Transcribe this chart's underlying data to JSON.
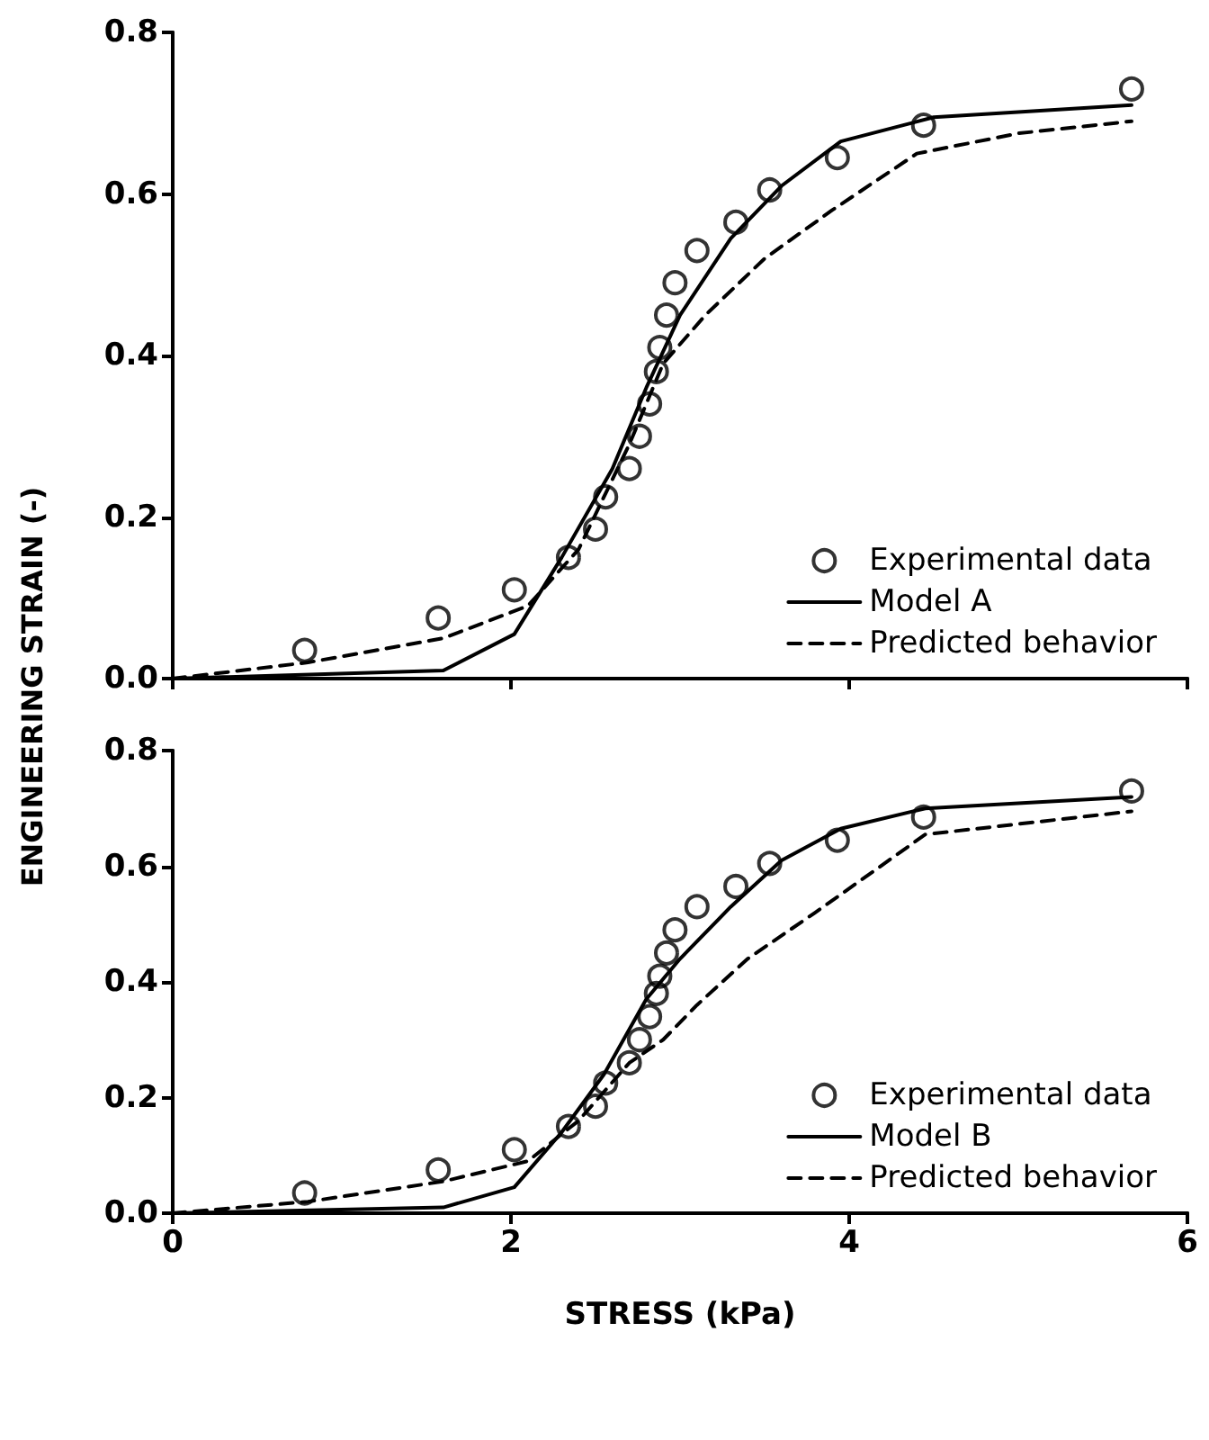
{
  "chart_data": [
    {
      "type": "scatter",
      "ylabel": "ENGINEERING STRAIN (-)",
      "xlim": [
        0,
        6
      ],
      "xticks": [
        0,
        2,
        4,
        6
      ],
      "ylim": [
        0,
        0.8
      ],
      "yticks": [
        {
          "value": 0,
          "label": "0.0"
        },
        0.2,
        0.4,
        0.6,
        0.8
      ],
      "tick_labels": "y",
      "grid": false,
      "legend": "bottom right",
      "series": [
        {
          "name": "Experimental data",
          "type": "scatter",
          "marker": "circle",
          "color": "#000000",
          "x": [
            0.78,
            1.57,
            2.02,
            2.34,
            2.5,
            2.56,
            2.7,
            2.76,
            2.82,
            2.86,
            2.88,
            2.92,
            2.97,
            3.1,
            3.33,
            3.53,
            3.93,
            4.44,
            5.67
          ],
          "values": [
            0.035,
            0.075,
            0.11,
            0.15,
            0.185,
            0.225,
            0.26,
            0.3,
            0.34,
            0.38,
            0.41,
            0.45,
            0.49,
            0.53,
            0.565,
            0.605,
            0.645,
            0.685,
            0.73
          ]
        },
        {
          "name": "Model A",
          "type": "line",
          "line_style": "solid",
          "color": "#000000",
          "x": [
            0,
            1.6,
            2.02,
            2.3,
            2.6,
            2.8,
            3.0,
            3.3,
            3.6,
            3.95,
            4.5,
            5.67
          ],
          "values": [
            0,
            0.01,
            0.055,
            0.15,
            0.26,
            0.36,
            0.45,
            0.545,
            0.61,
            0.665,
            0.695,
            0.71
          ]
        },
        {
          "name": "Predicted behavior",
          "type": "line",
          "line_style": "dashed",
          "color": "#000000",
          "x": [
            0,
            0.8,
            1.6,
            2.1,
            2.4,
            2.7,
            2.9,
            3.15,
            3.5,
            3.9,
            4.4,
            5.0,
            5.67
          ],
          "values": [
            0,
            0.02,
            0.05,
            0.09,
            0.16,
            0.29,
            0.39,
            0.45,
            0.52,
            0.58,
            0.65,
            0.675,
            0.69
          ]
        }
      ]
    },
    {
      "type": "scatter",
      "xlabel": "STRESS (kPa)",
      "xlim": [
        0,
        6
      ],
      "xticks": [
        0,
        2,
        4,
        6
      ],
      "ylim": [
        0,
        0.8
      ],
      "yticks": [
        {
          "value": 0,
          "label": "0.0"
        },
        0.2,
        0.4,
        0.6,
        0.8
      ],
      "grid": false,
      "legend": "bottom right",
      "series": [
        {
          "name": "Experimental data",
          "type": "scatter",
          "marker": "circle",
          "color": "#000000",
          "x": [
            0.78,
            1.57,
            2.02,
            2.34,
            2.5,
            2.56,
            2.7,
            2.76,
            2.82,
            2.86,
            2.88,
            2.92,
            2.97,
            3.1,
            3.33,
            3.53,
            3.93,
            4.44,
            5.67
          ],
          "values": [
            0.035,
            0.075,
            0.11,
            0.15,
            0.185,
            0.225,
            0.26,
            0.3,
            0.34,
            0.38,
            0.41,
            0.45,
            0.49,
            0.53,
            0.565,
            0.605,
            0.645,
            0.685,
            0.73
          ]
        },
        {
          "name": "Model B",
          "type": "line",
          "line_style": "solid",
          "color": "#000000",
          "x": [
            0,
            1.6,
            2.02,
            2.3,
            2.55,
            2.8,
            3.0,
            3.3,
            3.6,
            3.95,
            4.45,
            5.67
          ],
          "values": [
            0,
            0.01,
            0.045,
            0.14,
            0.24,
            0.37,
            0.44,
            0.53,
            0.61,
            0.665,
            0.7,
            0.72
          ]
        },
        {
          "name": "Predicted behavior",
          "type": "line",
          "line_style": "dashed",
          "color": "#000000",
          "x": [
            0,
            0.8,
            1.6,
            2.1,
            2.4,
            2.7,
            2.9,
            3.1,
            3.4,
            3.8,
            4.45,
            5.67
          ],
          "values": [
            0,
            0.02,
            0.055,
            0.09,
            0.16,
            0.26,
            0.3,
            0.36,
            0.44,
            0.52,
            0.655,
            0.695
          ]
        }
      ]
    }
  ]
}
